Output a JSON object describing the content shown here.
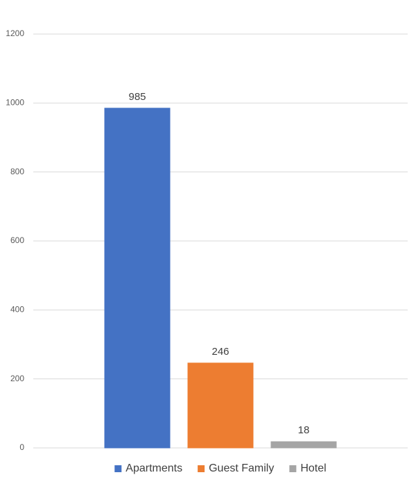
{
  "chart_data": {
    "type": "bar",
    "categories": [
      null
    ],
    "series": [
      {
        "name": "Apartments",
        "color": "#4472c4",
        "values": [
          985
        ]
      },
      {
        "name": "Guest Family",
        "color": "#ed7d31",
        "values": [
          246
        ]
      },
      {
        "name": "Hotel",
        "color": "#a5a5a5",
        "values": [
          18
        ]
      }
    ],
    "ylim": [
      0,
      1200
    ],
    "yticks": [
      0,
      200,
      400,
      600,
      800,
      1000,
      1200
    ],
    "grid": true,
    "legend": "bottom"
  }
}
